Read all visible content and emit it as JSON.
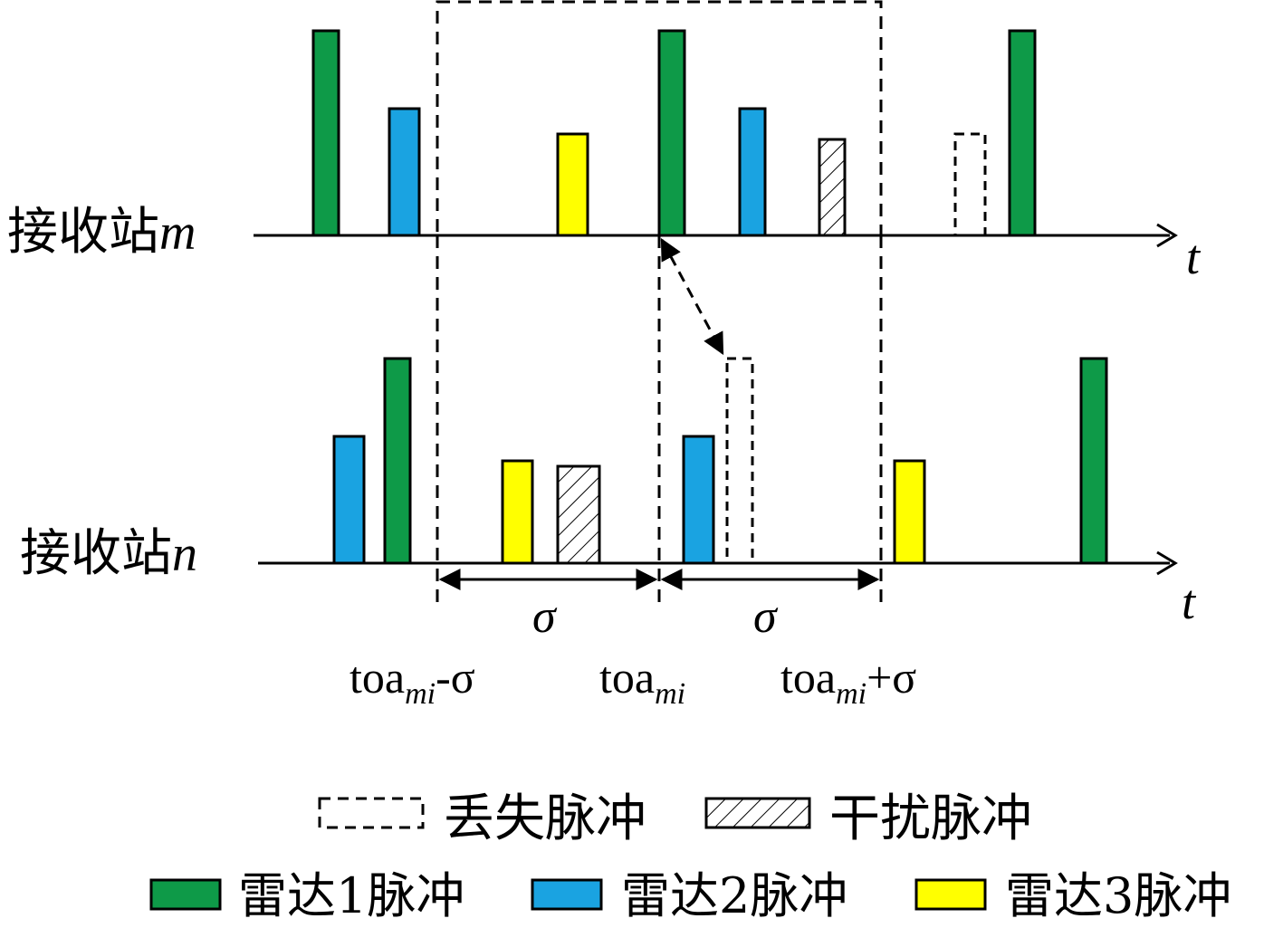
{
  "colors": {
    "radar1": "#0e9a48",
    "radar2": "#1aa3e1",
    "radar3": "#ffff00",
    "stroke": "#000000"
  },
  "stations": {
    "m": {
      "prefix": "接收站",
      "var": "m",
      "axis_label": "t"
    },
    "n": {
      "prefix": "接收站",
      "var": "n",
      "axis_label": "t"
    }
  },
  "pulses": {
    "m": [
      "radar1",
      "radar2",
      "radar3",
      "radar1",
      "radar2",
      "interference",
      "missing",
      "radar1"
    ],
    "n": [
      "radar2",
      "radar1",
      "radar3",
      "interference",
      "radar2",
      "missing",
      "radar3",
      "radar1"
    ]
  },
  "window": {
    "sigma_left": "σ",
    "sigma_right": "σ",
    "toa_minus": {
      "base": "toa",
      "sub": "mi",
      "suffix": "-σ"
    },
    "toa_center": {
      "base": "toa",
      "sub": "mi"
    },
    "toa_plus": {
      "base": "toa",
      "sub": "mi",
      "suffix": "+σ"
    }
  },
  "legend": {
    "missing": "丢失脉冲",
    "interference": "干扰脉冲",
    "radar1": "雷达1脉冲",
    "radar2": "雷达2脉冲",
    "radar3": "雷达3脉冲"
  }
}
